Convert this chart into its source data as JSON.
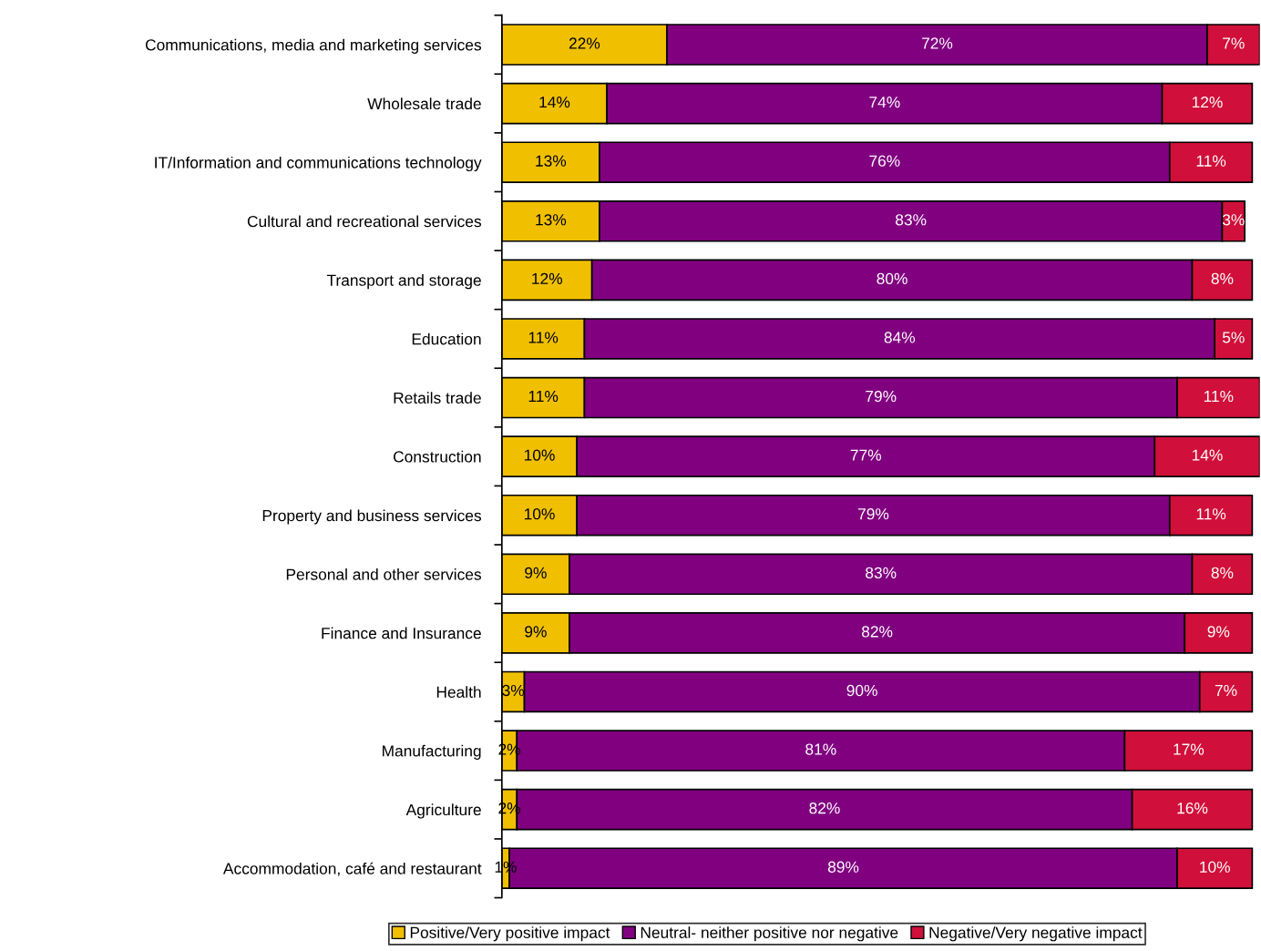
{
  "chart_data": {
    "type": "bar",
    "orientation": "horizontal",
    "stacked": true,
    "legend": "bottom",
    "grid": false,
    "categories": [
      "Communications, media and marketing services",
      "Wholesale trade",
      "IT/Information and communications technology",
      "Cultural and recreational services",
      "Transport and storage",
      "Education",
      "Retails trade",
      "Construction",
      "Property and business services",
      "Personal and other services",
      "Finance and Insurance",
      "Health",
      "Manufacturing",
      "Agriculture",
      "Accommodation, café and restaurant"
    ],
    "series": [
      {
        "name": "Positive/Very positive impact",
        "color": "#f0c000",
        "values": [
          22,
          14,
          13,
          13,
          12,
          11,
          11,
          10,
          10,
          9,
          9,
          3,
          2,
          2,
          1
        ],
        "value_labels": [
          "22%",
          "14%",
          "13%",
          "13%",
          "12%",
          "11%",
          "11%",
          "10%",
          "10%",
          "9%",
          "9%",
          "3%",
          "2%",
          "2%",
          "1%"
        ]
      },
      {
        "name": "Neutral- neither positive nor negative",
        "color": "#800080",
        "values": [
          72,
          74,
          76,
          83,
          80,
          84,
          79,
          77,
          79,
          83,
          82,
          90,
          81,
          82,
          89
        ],
        "value_labels": [
          "72%",
          "74%",
          "76%",
          "83%",
          "80%",
          "84%",
          "79%",
          "77%",
          "79%",
          "83%",
          "82%",
          "90%",
          "81%",
          "82%",
          "89%"
        ]
      },
      {
        "name": "Negative/Very negative impact",
        "color": "#d0103a",
        "values": [
          7,
          12,
          11,
          3,
          8,
          5,
          11,
          14,
          11,
          8,
          9,
          7,
          17,
          16,
          10
        ],
        "value_labels": [
          "7%",
          "12%",
          "11%",
          "3%",
          "8%",
          "5%",
          "11%",
          "14%",
          "11%",
          "8%",
          "9%",
          "7%",
          "17%",
          "16%",
          "10%"
        ]
      }
    ]
  }
}
